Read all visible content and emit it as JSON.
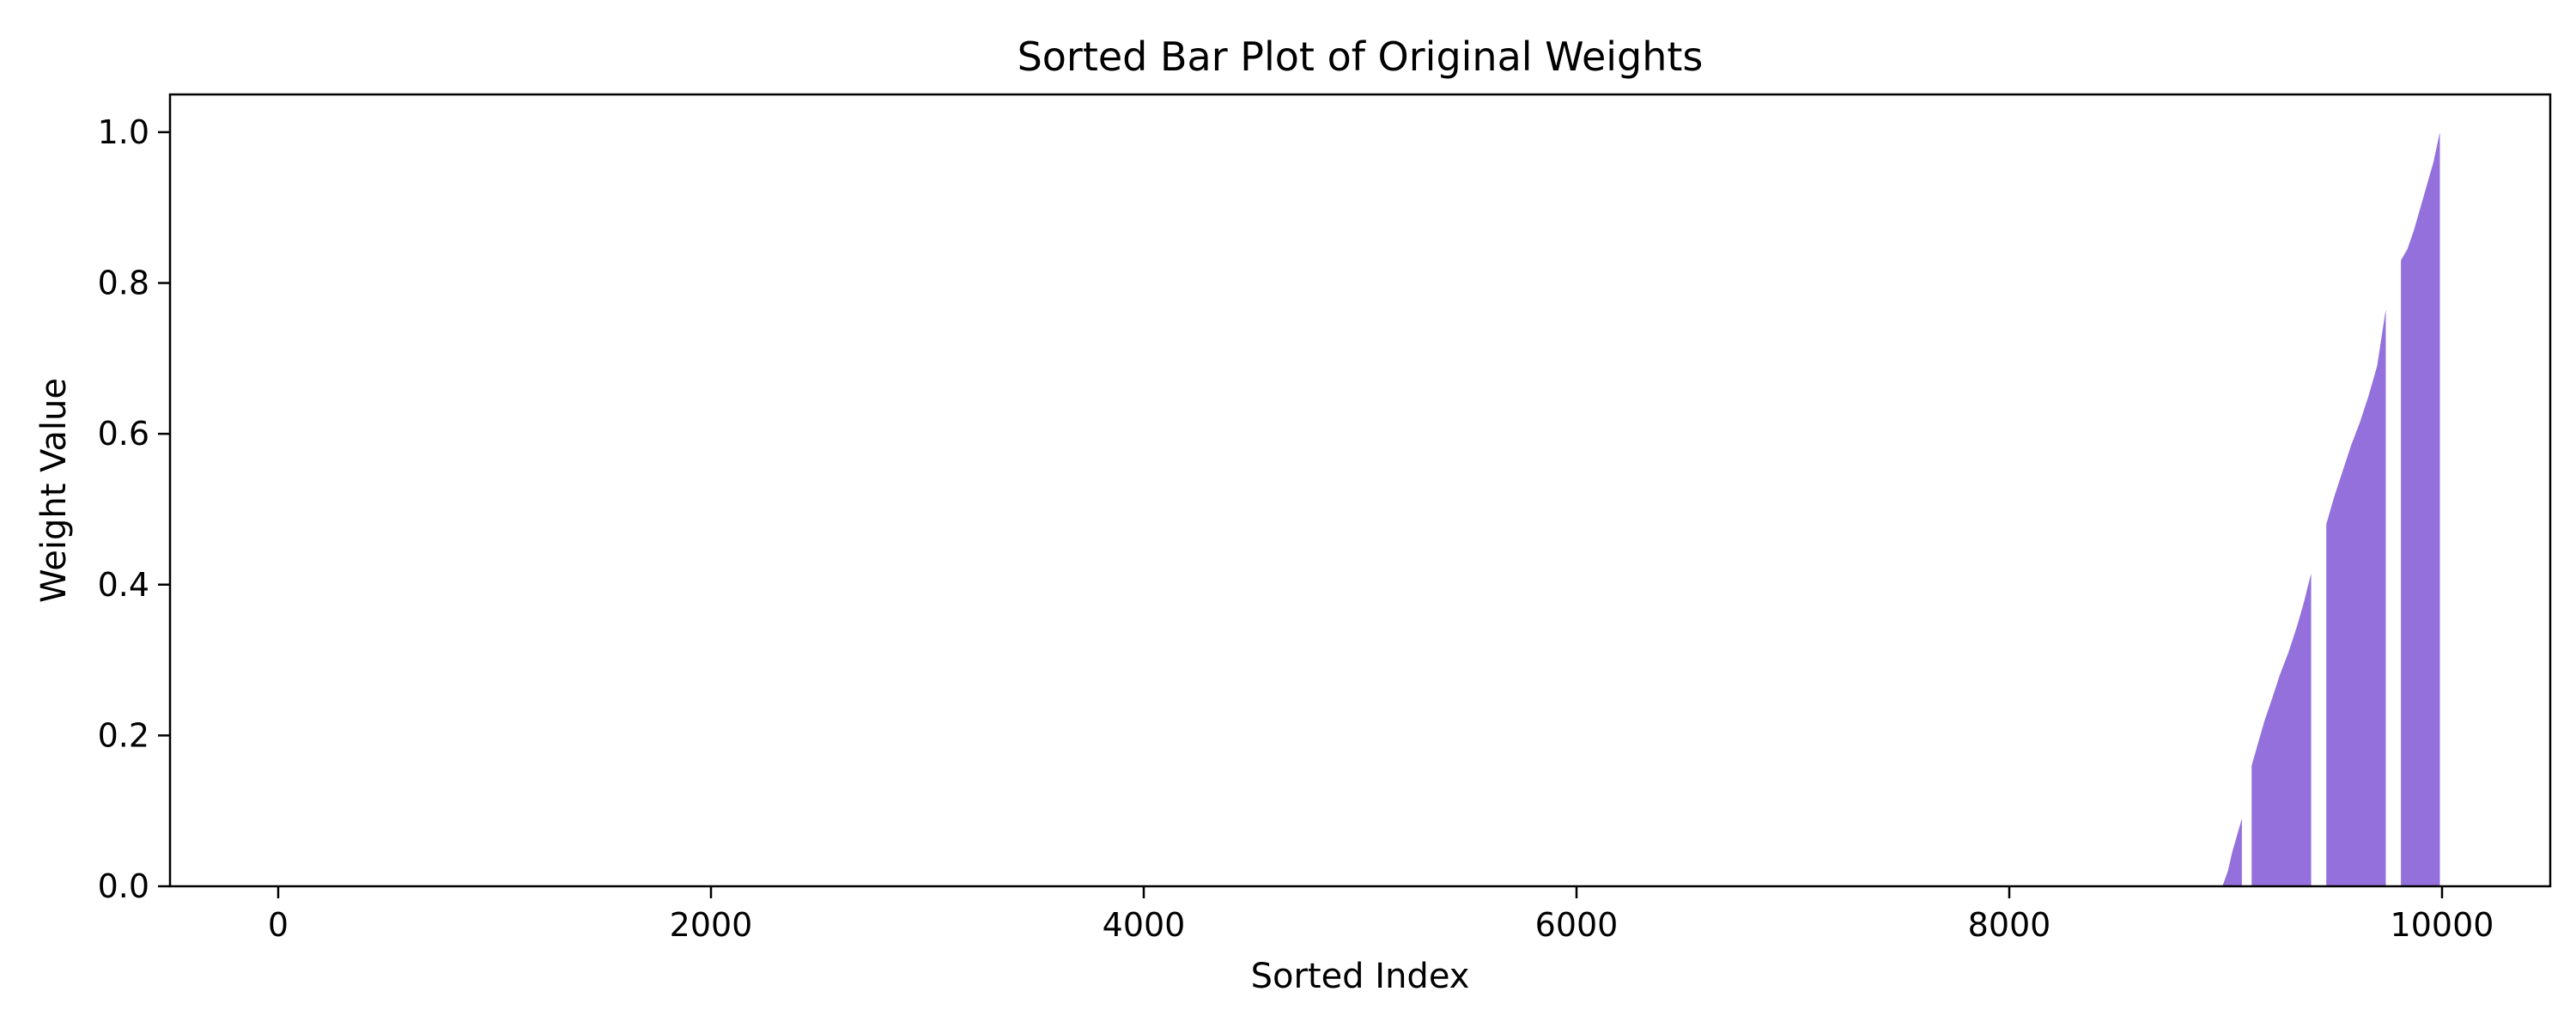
{
  "chart_data": {
    "type": "bar",
    "title": "Sorted Bar Plot of Original Weights",
    "xlabel": "Sorted Index",
    "ylabel": "Weight Value",
    "xlim": [
      -500,
      10500
    ],
    "ylim": [
      0,
      1.05
    ],
    "x_ticks": [
      0,
      2000,
      4000,
      6000,
      8000,
      10000
    ],
    "x_tick_labels": [
      "0",
      "2000",
      "4000",
      "6000",
      "8000",
      "10000"
    ],
    "y_ticks": [
      0.0,
      0.2,
      0.4,
      0.6,
      0.8,
      1.0
    ],
    "y_tick_labels": [
      "0.0",
      "0.2",
      "0.4",
      "0.6",
      "0.8",
      "1.0"
    ],
    "grid": false,
    "bar_color": "#9370DB",
    "n_points": 10000,
    "bar_groups": [
      {
        "x": [
          8985,
          9010,
          9030,
          9050,
          9075
        ],
        "values": [
          0.0,
          0.02,
          0.045,
          0.065,
          0.09
        ]
      },
      {
        "x": [
          9120,
          9150,
          9180,
          9210,
          9250,
          9290,
          9330,
          9360,
          9395
        ],
        "values": [
          0.16,
          0.19,
          0.22,
          0.245,
          0.28,
          0.31,
          0.345,
          0.375,
          0.415
        ]
      },
      {
        "x": [
          9465,
          9500,
          9540,
          9580,
          9620,
          9660,
          9700,
          9740
        ],
        "values": [
          0.48,
          0.515,
          0.55,
          0.585,
          0.615,
          0.65,
          0.69,
          0.765
        ]
      },
      {
        "x": [
          9810,
          9840,
          9870,
          9900,
          9930,
          9960,
          9990
        ],
        "values": [
          0.83,
          0.845,
          0.87,
          0.9,
          0.93,
          0.96,
          1.0
        ]
      }
    ]
  }
}
